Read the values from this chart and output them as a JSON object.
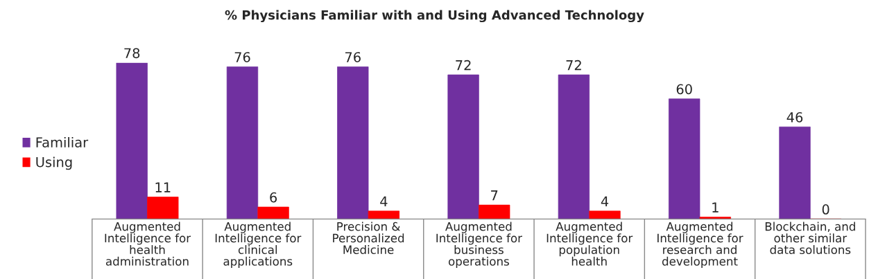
{
  "chart_data": {
    "type": "bar",
    "title": "% Physicians Familiar with and Using Advanced Technology",
    "categories": [
      "Augmented\nIntelligence for\nhealth\nadministration",
      "Augmented\nIntelligence for\nclinical\napplications",
      "Precision &\nPersonalized\nMedicine",
      "Augmented\nIntelligence for\nbusiness\noperations",
      "Augmented\nIntelligence for\npopulation\nhealth",
      "Augmented\nIntelligence for\nresearch and\ndevelopment",
      "Blockchain, and\nother similar\ndata solutions"
    ],
    "series": [
      {
        "name": "Familiar",
        "color": "#7030a0",
        "values": [
          78,
          76,
          76,
          72,
          72,
          60,
          46
        ]
      },
      {
        "name": "Using",
        "color": "#ff0000",
        "values": [
          11,
          6,
          4,
          7,
          4,
          1,
          0
        ]
      }
    ],
    "data_labels": true,
    "legend": "left",
    "grid": false
  }
}
